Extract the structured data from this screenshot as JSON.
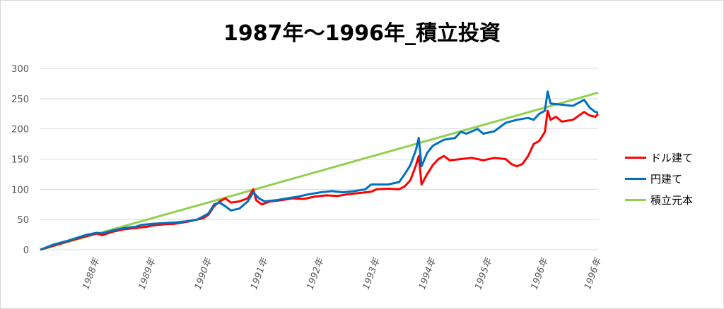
{
  "chart_data": {
    "type": "line",
    "title": "1987年～1996年_積立投資",
    "xlabel": "",
    "ylabel": "",
    "ylim": [
      0,
      300
    ],
    "yticks": [
      0,
      50,
      100,
      150,
      200,
      250,
      300
    ],
    "xlim": [
      1987.0,
      1996.95
    ],
    "xticks": [
      {
        "x": 1988.0,
        "label": "1988年"
      },
      {
        "x": 1989.0,
        "label": "1989年"
      },
      {
        "x": 1990.0,
        "label": "1990年"
      },
      {
        "x": 1991.0,
        "label": "1991年"
      },
      {
        "x": 1992.0,
        "label": "1992年"
      },
      {
        "x": 1993.0,
        "label": "1993年"
      },
      {
        "x": 1994.0,
        "label": "1994年"
      },
      {
        "x": 1995.0,
        "label": "1995年"
      },
      {
        "x": 1996.0,
        "label": "1996年"
      },
      {
        "x": 1996.95,
        "label": "1996年"
      }
    ],
    "grid": "horizontal",
    "legend": "right",
    "series": [
      {
        "name": "ドル建て",
        "color": "#ff0000",
        "points": [
          [
            1987.0,
            0
          ],
          [
            1987.25,
            7
          ],
          [
            1987.5,
            14
          ],
          [
            1987.8,
            22
          ],
          [
            1988.0,
            27
          ],
          [
            1988.1,
            24
          ],
          [
            1988.3,
            30
          ],
          [
            1988.5,
            34
          ],
          [
            1988.7,
            36
          ],
          [
            1988.9,
            38
          ],
          [
            1989.0,
            40
          ],
          [
            1989.2,
            42
          ],
          [
            1989.4,
            43
          ],
          [
            1989.6,
            46
          ],
          [
            1989.8,
            50
          ],
          [
            1989.9,
            52
          ],
          [
            1990.0,
            58
          ],
          [
            1990.1,
            72
          ],
          [
            1990.2,
            80
          ],
          [
            1990.3,
            85
          ],
          [
            1990.4,
            78
          ],
          [
            1990.55,
            80
          ],
          [
            1990.7,
            85
          ],
          [
            1990.8,
            100
          ],
          [
            1990.85,
            82
          ],
          [
            1990.95,
            75
          ],
          [
            1991.1,
            80
          ],
          [
            1991.3,
            82
          ],
          [
            1991.5,
            85
          ],
          [
            1991.7,
            84
          ],
          [
            1991.9,
            88
          ],
          [
            1992.1,
            90
          ],
          [
            1992.3,
            89
          ],
          [
            1992.5,
            92
          ],
          [
            1992.7,
            94
          ],
          [
            1992.9,
            96
          ],
          [
            1993.0,
            100
          ],
          [
            1993.2,
            101
          ],
          [
            1993.4,
            100
          ],
          [
            1993.5,
            105
          ],
          [
            1993.6,
            115
          ],
          [
            1993.7,
            140
          ],
          [
            1993.75,
            155
          ],
          [
            1993.8,
            108
          ],
          [
            1993.9,
            125
          ],
          [
            1994.0,
            140
          ],
          [
            1994.1,
            150
          ],
          [
            1994.2,
            155
          ],
          [
            1994.3,
            148
          ],
          [
            1994.5,
            150
          ],
          [
            1994.7,
            152
          ],
          [
            1994.8,
            150
          ],
          [
            1994.9,
            148
          ],
          [
            1995.1,
            152
          ],
          [
            1995.3,
            150
          ],
          [
            1995.4,
            142
          ],
          [
            1995.5,
            138
          ],
          [
            1995.6,
            142
          ],
          [
            1995.7,
            155
          ],
          [
            1995.8,
            175
          ],
          [
            1995.9,
            180
          ],
          [
            1996.0,
            195
          ],
          [
            1996.05,
            230
          ],
          [
            1996.1,
            215
          ],
          [
            1996.2,
            220
          ],
          [
            1996.3,
            212
          ],
          [
            1996.5,
            215
          ],
          [
            1996.7,
            228
          ],
          [
            1996.8,
            222
          ],
          [
            1996.9,
            220
          ],
          [
            1996.95,
            225
          ]
        ]
      },
      {
        "name": "円建て",
        "color": "#0070c0",
        "points": [
          [
            1987.0,
            0
          ],
          [
            1987.25,
            9
          ],
          [
            1987.5,
            15
          ],
          [
            1987.8,
            24
          ],
          [
            1988.0,
            28
          ],
          [
            1988.1,
            27
          ],
          [
            1988.3,
            32
          ],
          [
            1988.5,
            36
          ],
          [
            1988.7,
            38
          ],
          [
            1988.8,
            41
          ],
          [
            1989.0,
            43
          ],
          [
            1989.2,
            44
          ],
          [
            1989.4,
            45
          ],
          [
            1989.6,
            47
          ],
          [
            1989.8,
            50
          ],
          [
            1989.9,
            55
          ],
          [
            1990.0,
            60
          ],
          [
            1990.1,
            75
          ],
          [
            1990.2,
            78
          ],
          [
            1990.3,
            72
          ],
          [
            1990.4,
            65
          ],
          [
            1990.55,
            68
          ],
          [
            1990.7,
            80
          ],
          [
            1990.8,
            95
          ],
          [
            1990.9,
            85
          ],
          [
            1991.0,
            80
          ],
          [
            1991.2,
            82
          ],
          [
            1991.4,
            85
          ],
          [
            1991.6,
            88
          ],
          [
            1991.8,
            92
          ],
          [
            1992.0,
            95
          ],
          [
            1992.2,
            97
          ],
          [
            1992.4,
            95
          ],
          [
            1992.6,
            97
          ],
          [
            1992.8,
            100
          ],
          [
            1992.9,
            108
          ],
          [
            1993.0,
            108
          ],
          [
            1993.2,
            108
          ],
          [
            1993.4,
            112
          ],
          [
            1993.5,
            125
          ],
          [
            1993.6,
            140
          ],
          [
            1993.7,
            165
          ],
          [
            1993.75,
            185
          ],
          [
            1993.8,
            138
          ],
          [
            1993.9,
            160
          ],
          [
            1994.0,
            172
          ],
          [
            1994.2,
            182
          ],
          [
            1994.4,
            185
          ],
          [
            1994.5,
            195
          ],
          [
            1994.6,
            192
          ],
          [
            1994.8,
            200
          ],
          [
            1994.9,
            192
          ],
          [
            1995.1,
            196
          ],
          [
            1995.3,
            210
          ],
          [
            1995.5,
            215
          ],
          [
            1995.7,
            218
          ],
          [
            1995.8,
            215
          ],
          [
            1995.9,
            225
          ],
          [
            1996.0,
            230
          ],
          [
            1996.05,
            262
          ],
          [
            1996.1,
            242
          ],
          [
            1996.3,
            240
          ],
          [
            1996.5,
            238
          ],
          [
            1996.7,
            248
          ],
          [
            1996.8,
            235
          ],
          [
            1996.9,
            228
          ],
          [
            1996.95,
            227
          ]
        ]
      },
      {
        "name": "積立元本",
        "color": "#92d050",
        "points": [
          [
            1987.0,
            0
          ],
          [
            1996.95,
            260
          ]
        ]
      }
    ]
  }
}
